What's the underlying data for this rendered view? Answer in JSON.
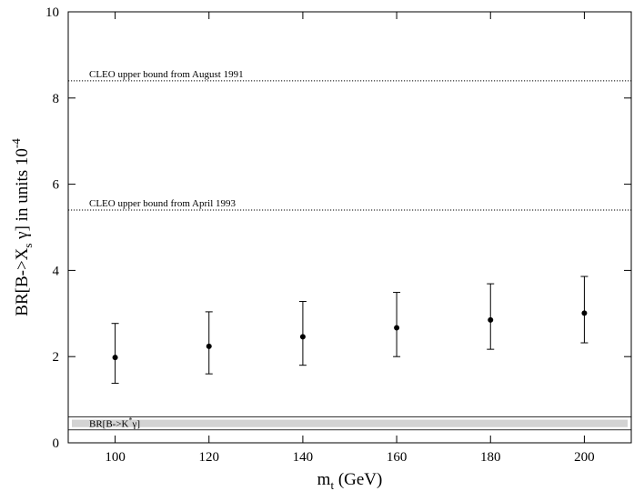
{
  "chart_data": {
    "type": "scatter",
    "xlabel": {
      "base": "m",
      "sub": "t",
      "rest": " (GeV)"
    },
    "ylabel": {
      "pre": "BR[B->X",
      "sub": "s",
      "mid": " γ] in units 10",
      "sup": "-4"
    },
    "xlim": [
      90,
      210
    ],
    "ylim": [
      0,
      10
    ],
    "x_ticks": [
      100,
      120,
      140,
      160,
      180,
      200
    ],
    "y_ticks": [
      0,
      2,
      4,
      6,
      8,
      10
    ],
    "grid": false,
    "series": [
      {
        "x": [
          100,
          120,
          140,
          160,
          180,
          200
        ],
        "y": [
          1.98,
          2.24,
          2.46,
          2.67,
          2.85,
          3.01
        ],
        "err_low": [
          1.38,
          1.6,
          1.8,
          2.0,
          2.17,
          2.32
        ],
        "err_high": [
          2.77,
          3.04,
          3.28,
          3.49,
          3.69,
          3.86
        ]
      }
    ],
    "reference_lines": [
      {
        "y": 8.4,
        "label": "CLEO upper bound from August 1991",
        "style": "dotted"
      },
      {
        "y": 5.4,
        "label": "CLEO upper bound from April 1993",
        "style": "dotted"
      }
    ],
    "band": {
      "y_low": 0.3,
      "y_high": 0.6,
      "label": {
        "pre": "BR[B->K",
        "sup": "*",
        "post": "γ]"
      },
      "color": "#d3d3d3"
    }
  }
}
